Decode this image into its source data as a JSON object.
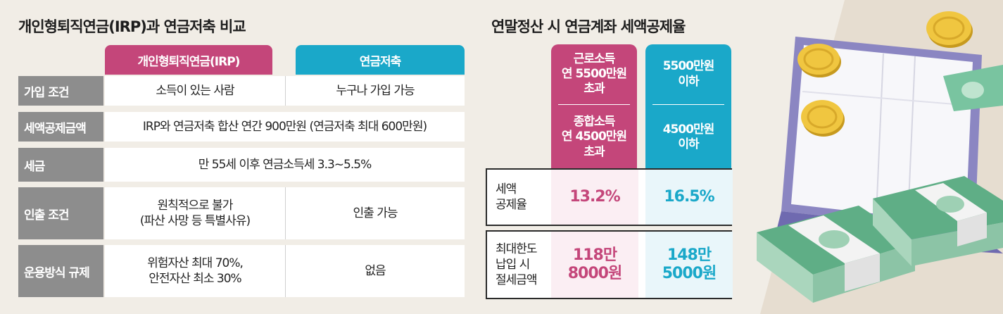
{
  "left": {
    "title": "개인형퇴직연금(IRP)과 연금저축 비교",
    "headers": {
      "irp": "개인형퇴직연금(IRP)",
      "savings": "연금저축"
    },
    "rows": [
      {
        "label": "가입 조건",
        "irp": "소득이 있는 사람",
        "savings": "누구나 가입 가능"
      },
      {
        "label": "세액공제금액",
        "combined": "IRP와 연금저축 합산 연간 900만원 (연금저축 최대 600만원)"
      },
      {
        "label": "세금",
        "combined": "만 55세 이후 연금소득세 3.3~5.5%"
      },
      {
        "label": "인출 조건",
        "irp_lines": [
          "원칙적으로 불가",
          "(파산 사망 등 특별사유)"
        ],
        "savings": "인출 가능"
      },
      {
        "label": "운용방식 규제",
        "irp_lines": [
          "위험자산 최대 70%,",
          "안전자산 최소 30%"
        ],
        "savings": "없음"
      }
    ]
  },
  "right": {
    "title": "연말정산 시 연금계좌 세액공제율",
    "col_high": {
      "top": [
        "근로소득",
        "연 5500만원",
        "초과"
      ],
      "bottom": [
        "종합소득",
        "연 4500만원",
        "초과"
      ]
    },
    "col_low": {
      "top": [
        "5500만원",
        "이하"
      ],
      "bottom": [
        "4500만원",
        "이하"
      ]
    },
    "rate": {
      "label": [
        "세액",
        "공제율"
      ],
      "high": "13.2%",
      "low": "16.5%"
    },
    "max": {
      "label": [
        "최대한도",
        "납입 시",
        "절세금액"
      ],
      "high": [
        "118만",
        "8000원"
      ],
      "low": [
        "148만",
        "5000원"
      ]
    }
  },
  "colors": {
    "pink": "#c4467a",
    "teal": "#1aa8c9",
    "gray": "#8d8d8d"
  },
  "illustration": {
    "icons": [
      "laptop-icon",
      "money-stack-icon",
      "gold-coin-icon"
    ]
  }
}
